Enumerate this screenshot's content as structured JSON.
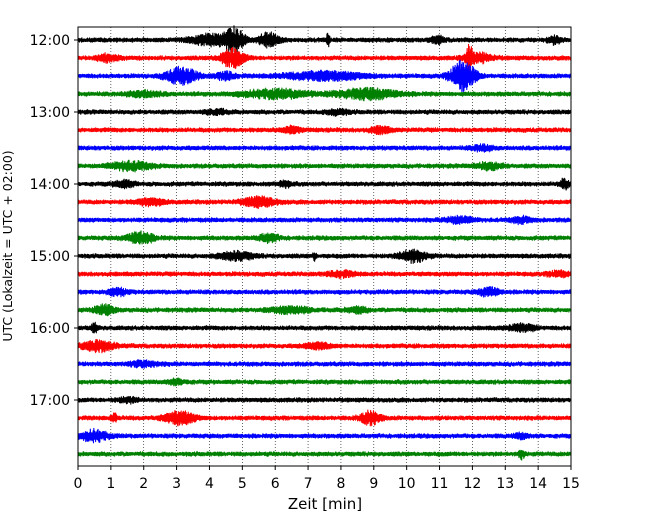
{
  "chart_data": {
    "type": "line",
    "chart_kind": "helicorder (seismogram drum plot)",
    "title": "",
    "xlabel": "Zeit  [min]",
    "ylabel": "UTC (Lokalzeit = UTC + 02:00)",
    "xlim": [
      0,
      15
    ],
    "x_ticks": [
      "0",
      "1",
      "2",
      "3",
      "4",
      "5",
      "6",
      "7",
      "8",
      "9",
      "10",
      "11",
      "12",
      "13",
      "14",
      "15"
    ],
    "y_tick_labels": [
      "12:00",
      "13:00",
      "14:00",
      "15:00",
      "16:00",
      "17:00"
    ],
    "grid": {
      "vertical_dotted_per_minute": true
    },
    "line_colors": [
      "#000000",
      "#ff0000",
      "#0000ff",
      "#008000"
    ],
    "traces": [
      {
        "start": "12:00",
        "color": "#000000",
        "events": [
          [
            4.0,
            0.55,
            0.6
          ],
          [
            4.75,
            0.3,
            1.3
          ],
          [
            5.8,
            0.3,
            0.8
          ],
          [
            7.6,
            0.05,
            0.9
          ],
          [
            10.95,
            0.2,
            0.4
          ],
          [
            14.5,
            0.2,
            0.4
          ]
        ]
      },
      {
        "start": "12:15",
        "color": "#ff0000",
        "events": [
          [
            0.9,
            0.3,
            0.4
          ],
          [
            4.7,
            0.35,
            1.0
          ],
          [
            11.9,
            0.1,
            1.3
          ],
          [
            12.2,
            0.4,
            0.5
          ]
        ]
      },
      {
        "start": "12:30",
        "color": "#0000ff",
        "events": [
          [
            3.15,
            0.45,
            0.9
          ],
          [
            4.5,
            0.3,
            0.4
          ],
          [
            7.5,
            1.2,
            0.45
          ],
          [
            11.6,
            0.3,
            1.3
          ],
          [
            11.9,
            0.3,
            0.7
          ]
        ]
      },
      {
        "start": "12:45",
        "color": "#008000",
        "events": [
          [
            2.0,
            0.5,
            0.3
          ],
          [
            6.0,
            1.0,
            0.45
          ],
          [
            8.8,
            0.9,
            0.55
          ]
        ]
      },
      {
        "start": "13:00",
        "color": "#000000",
        "events": [
          [
            4.2,
            0.3,
            0.3
          ],
          [
            7.9,
            0.3,
            0.3
          ]
        ]
      },
      {
        "start": "13:15",
        "color": "#ff0000",
        "events": [
          [
            6.5,
            0.3,
            0.3
          ],
          [
            9.2,
            0.3,
            0.35
          ]
        ]
      },
      {
        "start": "13:30",
        "color": "#0000ff",
        "events": [
          [
            12.3,
            0.3,
            0.3
          ]
        ]
      },
      {
        "start": "13:45",
        "color": "#008000",
        "events": [
          [
            1.6,
            0.6,
            0.45
          ],
          [
            12.5,
            0.4,
            0.35
          ]
        ]
      },
      {
        "start": "14:00",
        "color": "#000000",
        "events": [
          [
            1.4,
            0.3,
            0.35
          ],
          [
            6.3,
            0.2,
            0.3
          ],
          [
            14.8,
            0.15,
            0.5
          ]
        ]
      },
      {
        "start": "14:15",
        "color": "#ff0000",
        "events": [
          [
            2.2,
            0.4,
            0.35
          ],
          [
            5.5,
            0.5,
            0.5
          ]
        ]
      },
      {
        "start": "14:30",
        "color": "#0000ff",
        "events": [
          [
            11.6,
            0.4,
            0.35
          ],
          [
            13.5,
            0.3,
            0.3
          ]
        ]
      },
      {
        "start": "14:45",
        "color": "#008000",
        "events": [
          [
            1.9,
            0.4,
            0.6
          ],
          [
            5.8,
            0.3,
            0.4
          ]
        ]
      },
      {
        "start": "15:00",
        "color": "#000000",
        "events": [
          [
            4.8,
            0.5,
            0.45
          ],
          [
            10.2,
            0.4,
            0.65
          ],
          [
            7.2,
            0.05,
            0.4
          ]
        ]
      },
      {
        "start": "15:15",
        "color": "#ff0000",
        "events": [
          [
            8.0,
            0.4,
            0.3
          ],
          [
            14.6,
            0.3,
            0.3
          ]
        ]
      },
      {
        "start": "15:30",
        "color": "#0000ff",
        "events": [
          [
            1.2,
            0.3,
            0.35
          ],
          [
            12.5,
            0.3,
            0.45
          ]
        ]
      },
      {
        "start": "15:45",
        "color": "#008000",
        "events": [
          [
            0.8,
            0.3,
            0.5
          ],
          [
            6.5,
            0.6,
            0.35
          ],
          [
            8.5,
            0.3,
            0.3
          ]
        ]
      },
      {
        "start": "16:00",
        "color": "#000000",
        "events": [
          [
            0.5,
            0.1,
            0.5
          ],
          [
            13.5,
            0.4,
            0.35
          ]
        ]
      },
      {
        "start": "16:15",
        "color": "#ff0000",
        "events": [
          [
            0.6,
            0.5,
            0.55
          ],
          [
            7.3,
            0.4,
            0.3
          ]
        ]
      },
      {
        "start": "16:30",
        "color": "#0000ff",
        "events": [
          [
            2.0,
            0.4,
            0.3
          ]
        ]
      },
      {
        "start": "16:45",
        "color": "#008000",
        "events": [
          [
            3.0,
            0.3,
            0.25
          ]
        ]
      },
      {
        "start": "17:00",
        "color": "#000000",
        "events": [
          [
            1.5,
            0.3,
            0.25
          ]
        ]
      },
      {
        "start": "17:15",
        "color": "#ff0000",
        "events": [
          [
            3.1,
            0.45,
            0.7
          ],
          [
            8.9,
            0.3,
            0.7
          ],
          [
            1.1,
            0.1,
            0.4
          ]
        ]
      },
      {
        "start": "17:30",
        "color": "#0000ff",
        "events": [
          [
            0.5,
            0.4,
            0.6
          ],
          [
            13.5,
            0.2,
            0.3
          ]
        ]
      },
      {
        "start": "17:45",
        "color": "#008000",
        "events": [
          [
            13.5,
            0.1,
            0.45
          ]
        ]
      }
    ]
  }
}
